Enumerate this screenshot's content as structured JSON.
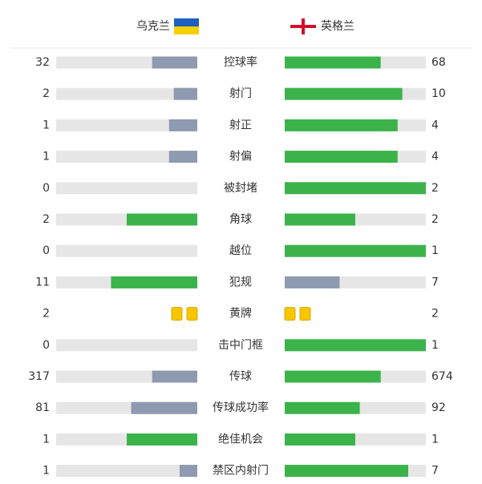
{
  "header": {
    "home": "乌克兰",
    "away": "英格兰"
  },
  "stats": {
    "colors": {
      "lead": "#3cb34a",
      "trail": "#8e9ab0",
      "track": "#e6e6e6",
      "card": "#f7c600"
    },
    "rows": [
      {
        "label": "控球率",
        "home": 32,
        "away": 68
      },
      {
        "label": "射门",
        "home": 2,
        "away": 10
      },
      {
        "label": "射正",
        "home": 1,
        "away": 4
      },
      {
        "label": "射偏",
        "home": 1,
        "away": 4
      },
      {
        "label": "被封堵",
        "home": 0,
        "away": 2
      },
      {
        "label": "角球",
        "home": 2,
        "away": 2
      },
      {
        "label": "越位",
        "home": 0,
        "away": 1
      },
      {
        "label": "犯规",
        "home": 11,
        "away": 7
      },
      {
        "label": "黄牌",
        "home": 2,
        "away": 2,
        "style": "cards"
      },
      {
        "label": "击中门框",
        "home": 0,
        "away": 1
      },
      {
        "label": "传球",
        "home": 317,
        "away": 674
      },
      {
        "label": "传球成功率",
        "home": 81,
        "away": 92
      },
      {
        "label": "绝佳机会",
        "home": 1,
        "away": 1
      },
      {
        "label": "禁区内射门",
        "home": 1,
        "away": 7
      }
    ]
  }
}
